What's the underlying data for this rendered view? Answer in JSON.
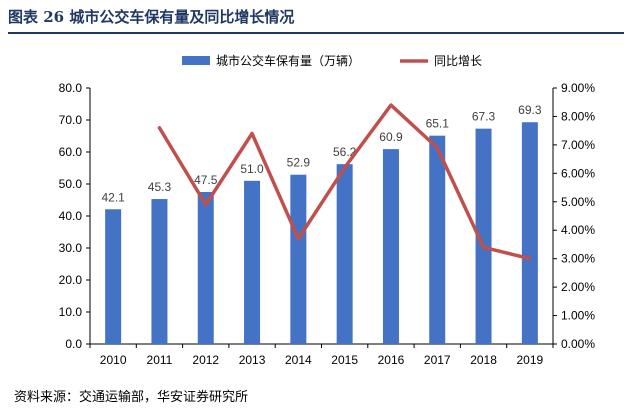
{
  "figure": {
    "title": "图表 26  城市公交车保有量及同比增长情况",
    "source": "资料来源：交通运输部，华安证券研究所"
  },
  "chart_data": {
    "type": "bar",
    "categories": [
      "2010",
      "2011",
      "2012",
      "2013",
      "2014",
      "2015",
      "2016",
      "2017",
      "2018",
      "2019"
    ],
    "series": [
      {
        "name": "城市公交车保有量（万辆）",
        "type": "bar",
        "axis": "left",
        "color": "#4472c4",
        "values": [
          42.1,
          45.3,
          47.5,
          51.0,
          52.9,
          56.2,
          60.9,
          65.1,
          67.3,
          69.3
        ],
        "labels": [
          "42.1",
          "45.3",
          "47.5",
          "51.0",
          "52.9",
          "56.2",
          "60.9",
          "65.1",
          "67.3",
          "69.3"
        ]
      },
      {
        "name": "同比增长",
        "type": "line",
        "axis": "right",
        "color": "#c0504d",
        "values": [
          null,
          7.6,
          4.9,
          7.4,
          3.7,
          6.2,
          8.4,
          6.9,
          3.4,
          3.0
        ]
      }
    ],
    "left_axis": {
      "min": 0,
      "max": 80,
      "step": 10,
      "ticks": [
        "0.0",
        "10.0",
        "20.0",
        "30.0",
        "40.0",
        "50.0",
        "60.0",
        "70.0",
        "80.0"
      ]
    },
    "right_axis": {
      "min": 0,
      "max": 9,
      "step": 1,
      "ticks": [
        "0.00%",
        "1.00%",
        "2.00%",
        "3.00%",
        "4.00%",
        "5.00%",
        "6.00%",
        "7.00%",
        "8.00%",
        "9.00%"
      ]
    },
    "legend_position": "top-center",
    "grid": false
  }
}
